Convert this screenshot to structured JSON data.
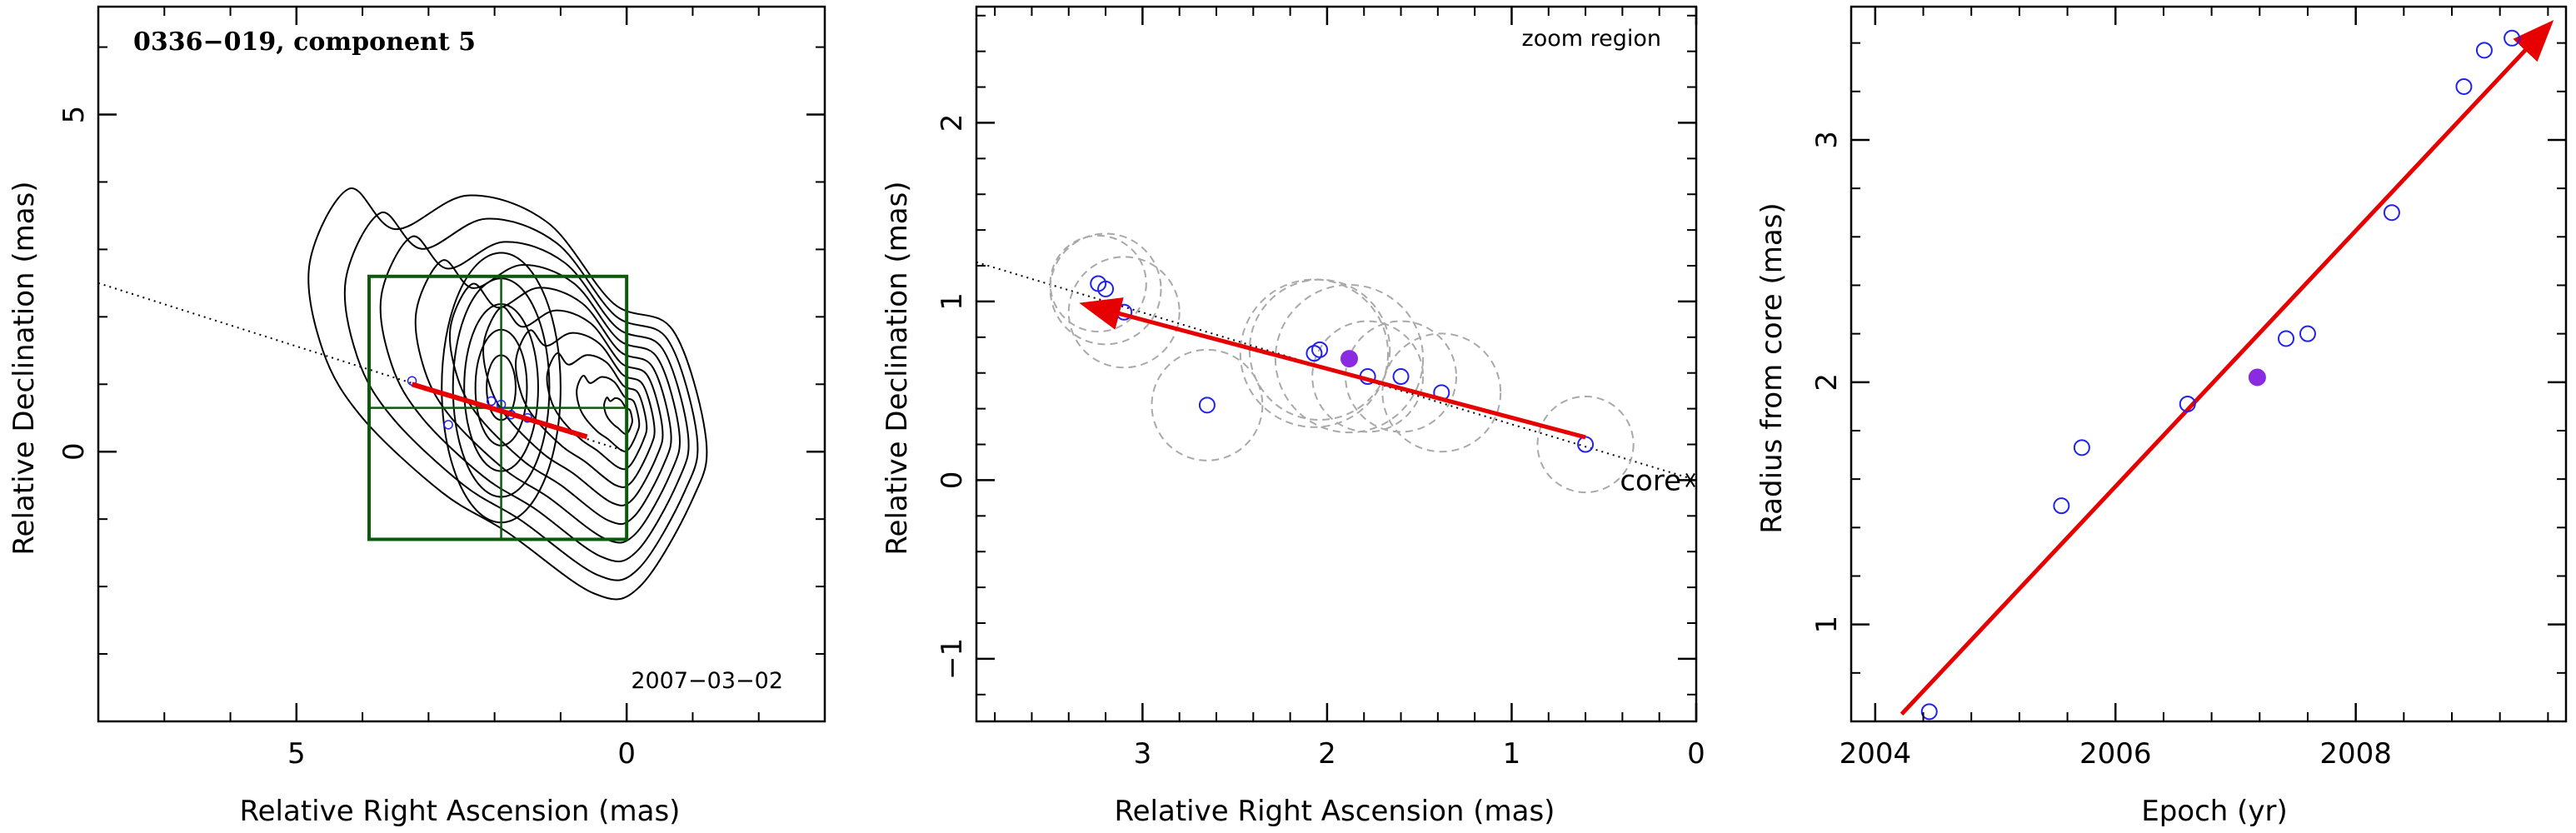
{
  "colors": {
    "axis": "#000000",
    "contour": "#000000",
    "box": "#0b5a0b",
    "arrow": "#e60000",
    "open_point": "#2222ee",
    "filled_point": "#8a2be2",
    "dashed_circle": "#a9a9a9"
  },
  "chart_data": [
    {
      "type": "contour",
      "title": "0336−019, component 5",
      "epoch_label": "2007−03−02",
      "xlabel": "Relative Right Ascension (mas)",
      "ylabel": "Relative Declination (mas)",
      "xlim": [
        8,
        -3
      ],
      "ylim": [
        -4,
        6.6
      ],
      "xticks": [
        5,
        0
      ],
      "yticks": [
        5,
        0
      ],
      "contour_levels": 10,
      "zoom_box": {
        "x": [
          0.0,
          3.9
        ],
        "y": [
          -1.3,
          2.6
        ]
      },
      "zoom_box_crosshair": {
        "x": 1.9,
        "y": 0.65
      },
      "projection_line": {
        "x": [
          8,
          0
        ],
        "y": [
          2.5,
          0
        ]
      },
      "points": {
        "x": [
          3.25,
          2.7,
          2.05,
          1.9,
          1.75,
          1.5
        ],
        "y": [
          1.05,
          0.4,
          0.75,
          0.7,
          0.55,
          0.5
        ]
      },
      "arrow": {
        "from": [
          0.6,
          0.22
        ],
        "to": [
          3.25,
          1.0
        ]
      }
    },
    {
      "type": "scatter",
      "annotation": "zoom region",
      "core_label": "core",
      "xlabel": "Relative Right Ascension (mas)",
      "ylabel": "Relative Declination (mas)",
      "xlim": [
        3.9,
        0
      ],
      "ylim": [
        -1.35,
        2.65
      ],
      "xticks": [
        3,
        2,
        1,
        0
      ],
      "yticks": [
        2,
        1,
        0,
        -1
      ],
      "projection_line": {
        "x": [
          3.9,
          0
        ],
        "y": [
          1.22,
          0
        ]
      },
      "points": [
        {
          "x": 3.24,
          "y": 1.1,
          "r": 0.26
        },
        {
          "x": 3.2,
          "y": 1.07,
          "r": 0.3
        },
        {
          "x": 3.1,
          "y": 0.94,
          "r": 0.3
        },
        {
          "x": 2.65,
          "y": 0.42,
          "r": 0.3
        },
        {
          "x": 2.07,
          "y": 0.71,
          "r": 0.4
        },
        {
          "x": 2.04,
          "y": 0.73,
          "r": 0.38
        },
        {
          "x": 1.78,
          "y": 0.58,
          "r": 0.3
        },
        {
          "x": 1.6,
          "y": 0.58,
          "r": 0.3
        },
        {
          "x": 1.38,
          "y": 0.49,
          "r": 0.32
        },
        {
          "x": 0.6,
          "y": 0.2,
          "r": 0.26
        }
      ],
      "highlight_point": {
        "x": 1.88,
        "y": 0.68,
        "r": 0.4
      },
      "arrow": {
        "from": [
          0.6,
          0.24
        ],
        "to": [
          3.3,
          0.98
        ]
      }
    },
    {
      "type": "scatter",
      "xlabel": "Epoch (yr)",
      "ylabel": "Radius from core (mas)",
      "xlim": [
        2003.8,
        2009.75
      ],
      "ylim": [
        0.6,
        3.55
      ],
      "xticks": [
        2004,
        2006,
        2008
      ],
      "yticks": [
        1,
        2,
        3
      ],
      "points": {
        "x": [
          2004.45,
          2005.55,
          2005.72,
          2006.6,
          2007.42,
          2007.6,
          2008.3,
          2008.9,
          2009.07,
          2009.3
        ],
        "y": [
          0.64,
          1.49,
          1.73,
          1.91,
          2.18,
          2.2,
          2.7,
          3.22,
          3.37,
          3.42
        ]
      },
      "highlight_point": {
        "x": 2007.18,
        "y": 2.02
      },
      "fit_arrow": {
        "from": [
          2004.22,
          0.63
        ],
        "to": [
          2009.6,
          3.47
        ]
      }
    }
  ]
}
